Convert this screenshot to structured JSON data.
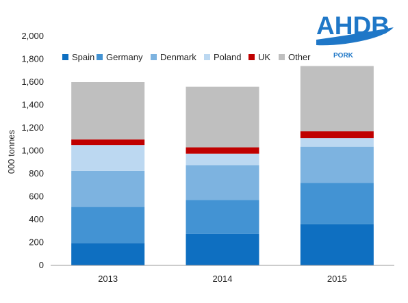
{
  "logo": {
    "name": "AHDB",
    "sub": "PORK",
    "color": "#1f77c7"
  },
  "chart_data": {
    "type": "bar",
    "stacked": true,
    "categories": [
      "2013",
      "2014",
      "2015"
    ],
    "series": [
      {
        "name": "Spain",
        "color": "#0e6fc1",
        "values": [
          195,
          275,
          360
        ]
      },
      {
        "name": "Germany",
        "color": "#4393d3",
        "values": [
          315,
          295,
          360
        ]
      },
      {
        "name": "Denmark",
        "color": "#7db3e0",
        "values": [
          315,
          305,
          315
        ]
      },
      {
        "name": "Poland",
        "color": "#bcd8f1",
        "values": [
          225,
          100,
          75
        ]
      },
      {
        "name": "UK",
        "color": "#c00000",
        "values": [
          50,
          55,
          60
        ]
      },
      {
        "name": "Other",
        "color": "#bfbfbf",
        "values": [
          500,
          530,
          570
        ]
      }
    ],
    "ylabel": "000 tonnes",
    "xlabel": "",
    "ylim": [
      0,
      2000
    ],
    "yticks": [
      0,
      200,
      400,
      600,
      800,
      1000,
      1200,
      1400,
      1600,
      1800,
      2000
    ],
    "ytick_labels": [
      "0",
      "200",
      "400",
      "600",
      "800",
      "1,000",
      "1,200",
      "1,400",
      "1,600",
      "1,800",
      "2,000"
    ],
    "grid": false,
    "legend": "top"
  }
}
